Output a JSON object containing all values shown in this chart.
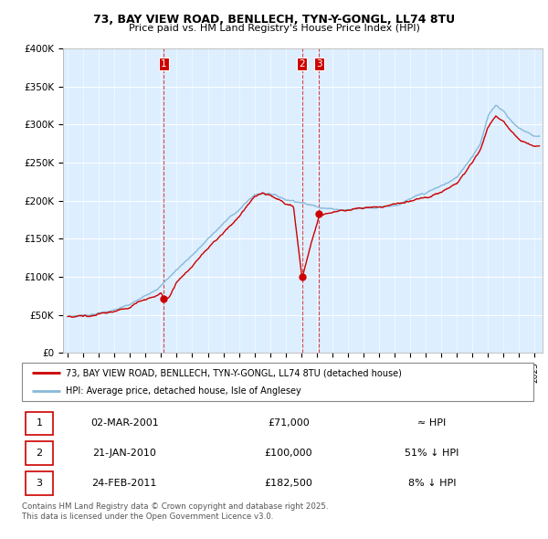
{
  "title1": "73, BAY VIEW ROAD, BENLLECH, TYN-Y-GONGL, LL74 8TU",
  "title2": "Price paid vs. HM Land Registry's House Price Index (HPI)",
  "legend_line1": "73, BAY VIEW ROAD, BENLLECH, TYN-Y-GONGL, LL74 8TU (detached house)",
  "legend_line2": "HPI: Average price, detached house, Isle of Anglesey",
  "sale_color": "#cc0000",
  "hpi_color": "#87b9d8",
  "bg_color": "#ddeeff",
  "vline_color": "#cc0000",
  "yticks": [
    0,
    50000,
    100000,
    150000,
    200000,
    250000,
    300000,
    350000,
    400000
  ],
  "ytick_labels": [
    "£0",
    "£50K",
    "£100K",
    "£150K",
    "£200K",
    "£250K",
    "£300K",
    "£350K",
    "£400K"
  ],
  "sales": [
    {
      "date": 2001.17,
      "price": 71000,
      "label": "1"
    },
    {
      "date": 2010.05,
      "price": 100000,
      "label": "2"
    },
    {
      "date": 2011.15,
      "price": 182500,
      "label": "3"
    }
  ],
  "table_rows": [
    {
      "num": "1",
      "date": "02-MAR-2001",
      "price": "£71,000",
      "rel": "≈ HPI"
    },
    {
      "num": "2",
      "date": "21-JAN-2010",
      "price": "£100,000",
      "rel": "51% ↓ HPI"
    },
    {
      "num": "3",
      "date": "24-FEB-2011",
      "price": "£182,500",
      "rel": "8% ↓ HPI"
    }
  ],
  "footnote1": "Contains HM Land Registry data © Crown copyright and database right 2025.",
  "footnote2": "This data is licensed under the Open Government Licence v3.0.",
  "xmin": 1994.7,
  "xmax": 2025.5,
  "ymin": 0,
  "ymax": 400000
}
